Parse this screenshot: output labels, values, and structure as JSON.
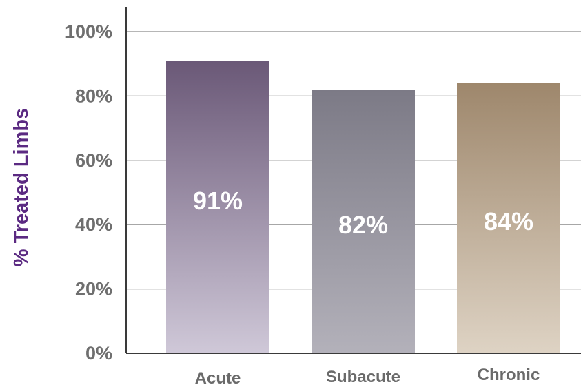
{
  "chart_data": {
    "type": "bar",
    "categories": [
      "Acute",
      "Subacute",
      "Chronic"
    ],
    "values": [
      91,
      82,
      84
    ],
    "data_labels": [
      "91%",
      "82%",
      "84%"
    ],
    "ylabel": "% Treated Limbs",
    "ylim": [
      0,
      100
    ],
    "yticks": [
      0,
      20,
      40,
      60,
      80,
      100
    ],
    "ytick_labels": [
      "0%",
      "20%",
      "40%",
      "60%",
      "80%",
      "100%"
    ],
    "grid": true,
    "colors": {
      "ylabel": "#5b2a82",
      "bars": [
        {
          "top": "#6a5877",
          "bottom": "#cfc8d8"
        },
        {
          "top": "#7c7a86",
          "bottom": "#b3b1ba"
        },
        {
          "top": "#9e876c",
          "bottom": "#ded3c4"
        }
      ]
    }
  }
}
